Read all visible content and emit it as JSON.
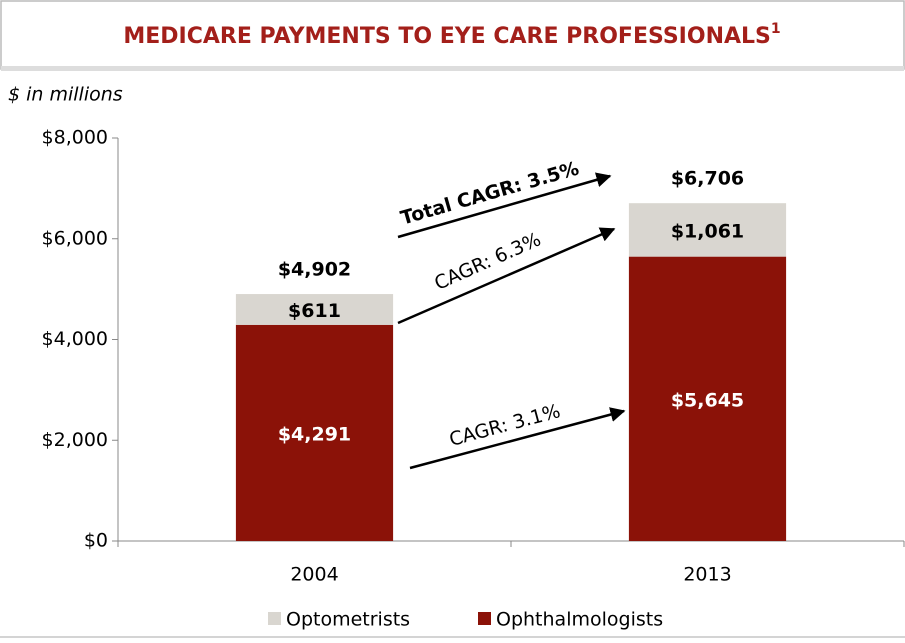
{
  "chart_data": {
    "type": "stacked_bar",
    "title": "MEDICARE PAYMENTS TO EYE CARE PROFESSIONALS",
    "title_footnote": "1",
    "subtitle": "$ in millions",
    "categories": [
      "2004",
      "2013"
    ],
    "series": [
      {
        "name": "Ophthalmologists",
        "color": "#8b1208",
        "values": [
          4291,
          5645
        ],
        "value_labels": [
          "$4,291",
          "$5,645"
        ]
      },
      {
        "name": "Optometrists",
        "color": "#d9d6d0",
        "values": [
          611,
          1061
        ],
        "value_labels": [
          "$611",
          "$1,061"
        ]
      }
    ],
    "totals": [
      4902,
      6706
    ],
    "total_labels": [
      "$4,902",
      "$6,706"
    ],
    "annotations": [
      {
        "text": "Total CAGR: 3.5%"
      },
      {
        "text": "CAGR: 6.3%"
      },
      {
        "text": "CAGR: 3.1%"
      }
    ],
    "ylim": [
      0,
      8000
    ],
    "yticks": [
      {
        "value": 0,
        "label": "$0"
      },
      {
        "value": 2000,
        "label": "$2,000"
      },
      {
        "value": 4000,
        "label": "$4,000"
      },
      {
        "value": 6000,
        "label": "$6,000"
      },
      {
        "value": 8000,
        "label": "$8,000"
      }
    ],
    "legend": "bottom"
  }
}
